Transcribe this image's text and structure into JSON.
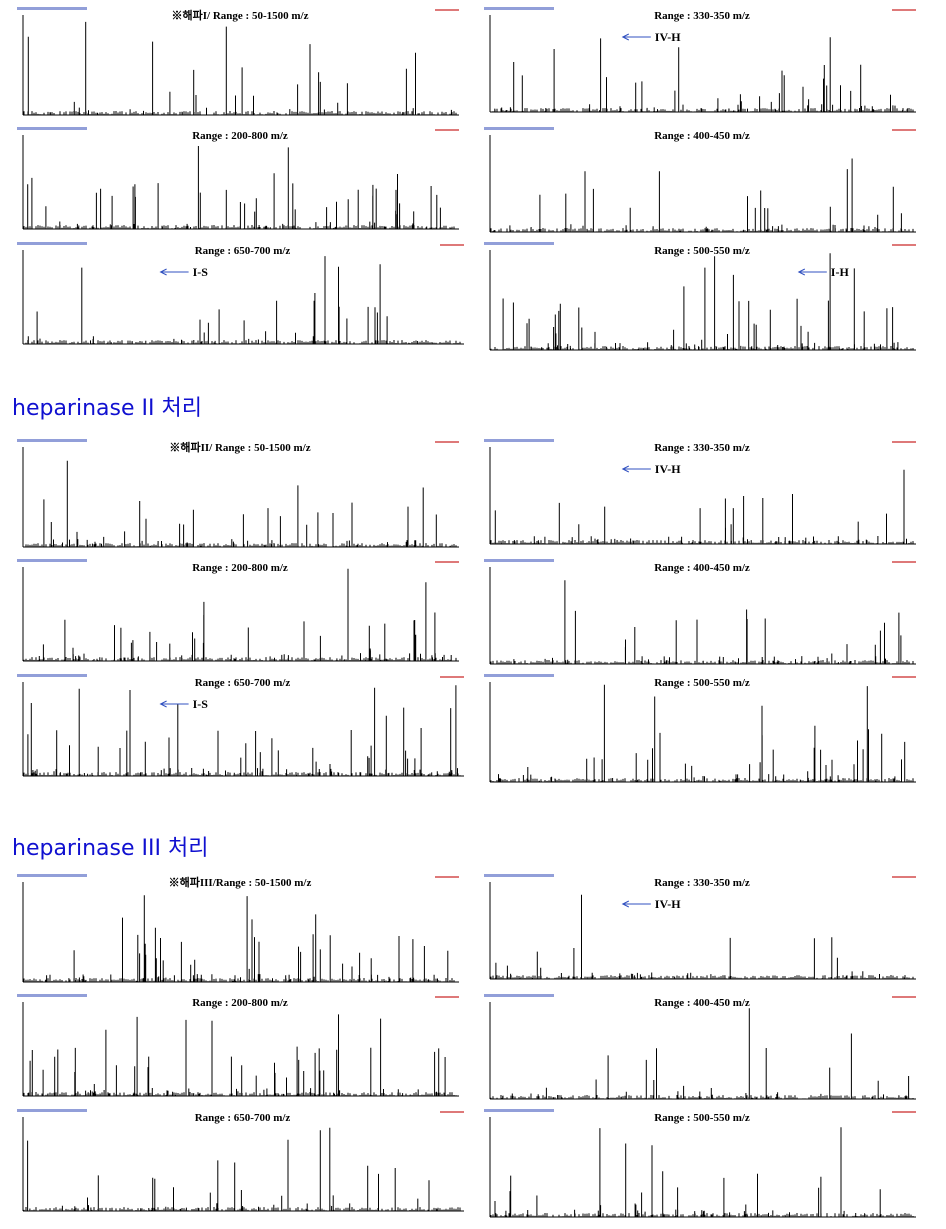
{
  "sections": [
    {
      "panels": [
        {
          "title": "※해파I/ Range : 50-1500 m/z"
        },
        {
          "title": "Range : 200-800 m/z"
        },
        {
          "title": "Range : 650-700 m/z",
          "annotation": "I-S"
        },
        {
          "title": "Range : 330-350 m/z",
          "annotation": "IV-H"
        },
        {
          "title": "Range : 400-450 m/z"
        },
        {
          "title": "Range : 500-550 m/z",
          "annotation": "I-H"
        }
      ]
    },
    {
      "heading": "heparinase II 처리",
      "panels": [
        {
          "title": "※해파II/ Range : 50-1500 m/z"
        },
        {
          "title": "Range : 200-800 m/z"
        },
        {
          "title": "Range : 650-700 m/z",
          "annotation": "I-S"
        },
        {
          "title": "Range : 330-350 m/z",
          "annotation": "IV-H"
        },
        {
          "title": "Range : 400-450 m/z"
        },
        {
          "title": "Range : 500-550 m/z"
        }
      ]
    },
    {
      "heading": "heparinase III 처리",
      "panels": [
        {
          "title": "※해파III/Range : 50-1500 m/z"
        },
        {
          "title": "Range : 200-800 m/z"
        },
        {
          "title": "Range : 650-700 m/z"
        },
        {
          "title": "Range : 330-350 m/z",
          "annotation": "IV-H"
        },
        {
          "title": "Range : 400-450 m/z"
        },
        {
          "title": "Range : 500-550 m/z"
        }
      ]
    }
  ]
}
